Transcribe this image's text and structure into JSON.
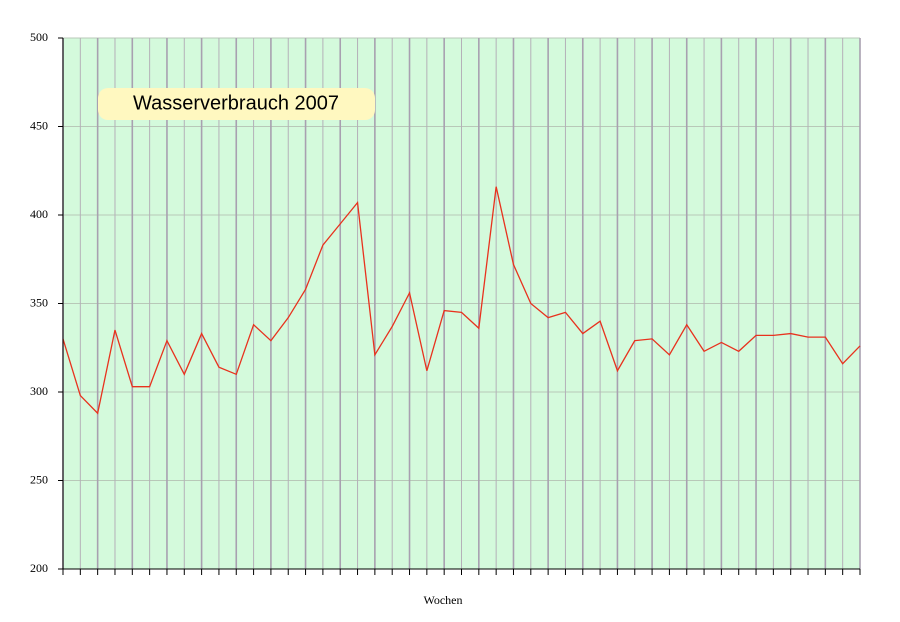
{
  "chart_data": {
    "type": "line",
    "title": "Wasserverbrauch 2007",
    "x_label": "Wochen",
    "categories": [
      null,
      null,
      null,
      null,
      null,
      null,
      null,
      null,
      null,
      null,
      null,
      null,
      null,
      null,
      null,
      null,
      null,
      null,
      null,
      null,
      null,
      null,
      null,
      null,
      null,
      null,
      null,
      null,
      null,
      null,
      null,
      null,
      null,
      null,
      null,
      null,
      null,
      null,
      null,
      null,
      null,
      null,
      null,
      null,
      null,
      null,
      null
    ],
    "values": [
      330,
      298,
      288,
      335,
      303,
      303,
      329,
      310,
      333,
      314,
      310,
      338,
      329,
      342,
      358,
      383,
      395,
      407,
      321,
      337,
      356,
      312,
      346,
      345,
      336,
      416,
      372,
      350,
      342,
      345,
      333,
      340,
      312,
      329,
      330,
      321,
      338,
      323,
      328,
      323,
      332,
      332,
      333,
      331,
      331,
      316,
      326
    ],
    "color": "#e8321e",
    "background": "#d4fadc",
    "ylim": [
      200,
      500
    ],
    "yticks": [
      200,
      250,
      300,
      350,
      400,
      450,
      500
    ],
    "grid": true
  }
}
